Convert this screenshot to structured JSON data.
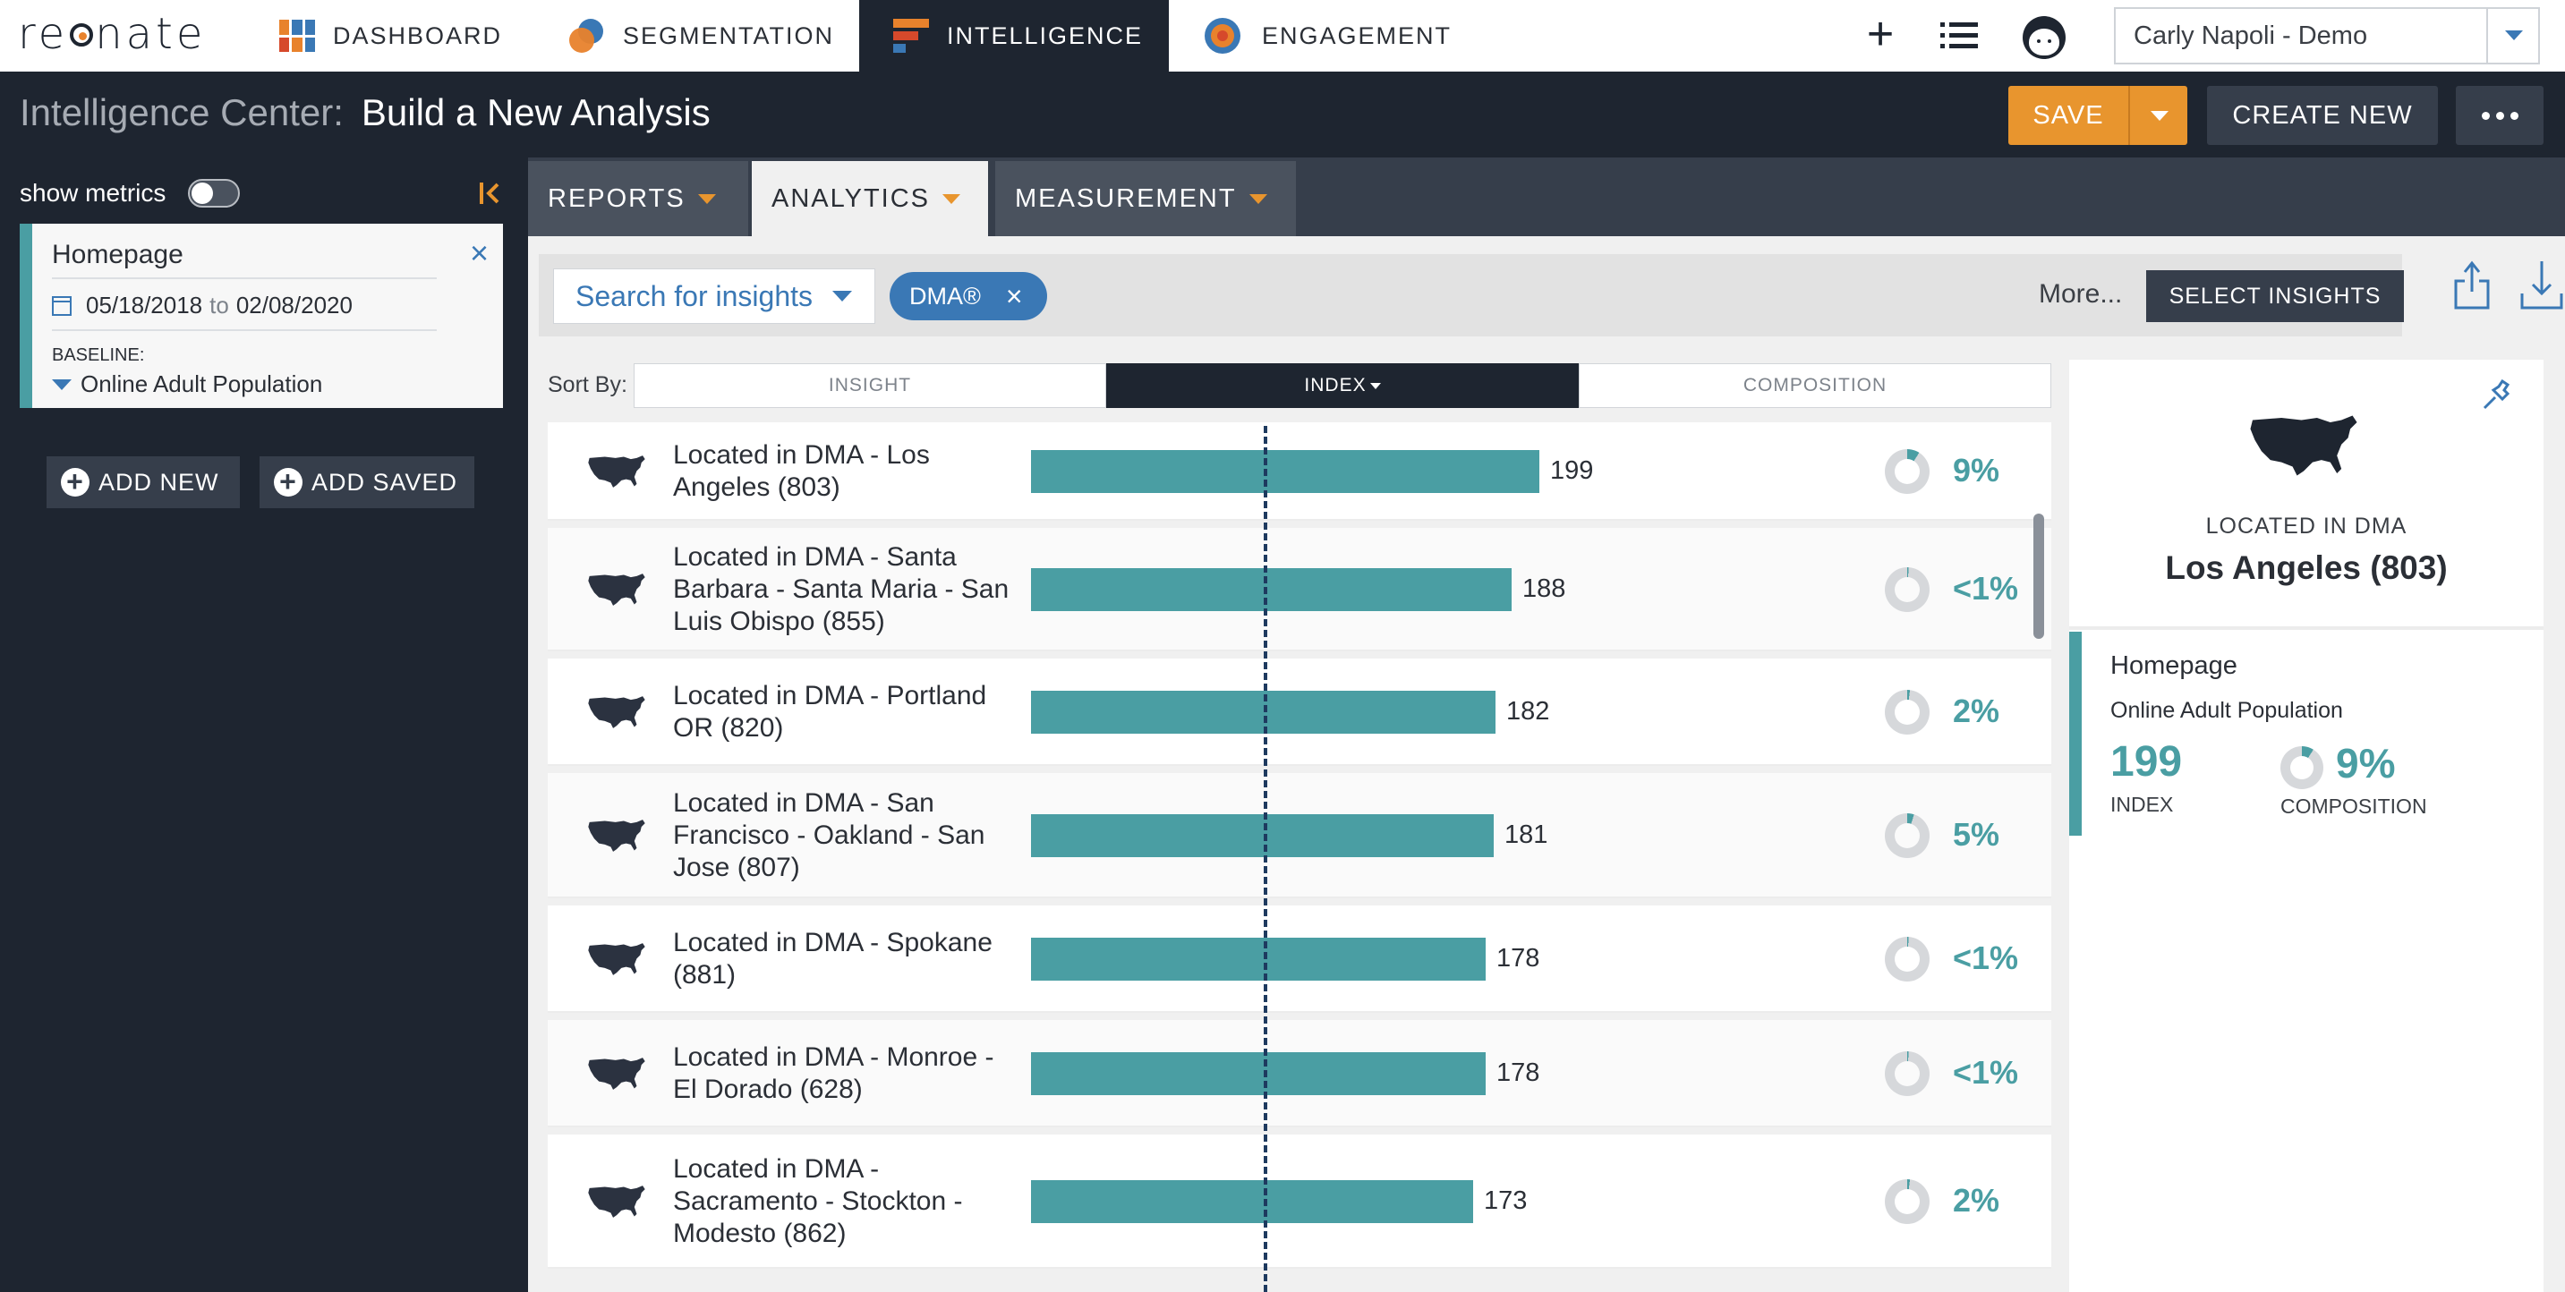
{
  "brand": {
    "logo_text_pre": "re",
    "logo_text_post": "nate"
  },
  "nav": {
    "tabs": [
      {
        "label": "DASHBOARD"
      },
      {
        "label": "SEGMENTATION"
      },
      {
        "label": "INTELLIGENCE",
        "active": true
      },
      {
        "label": "ENGAGEMENT"
      }
    ],
    "plus": "+",
    "user": "Carly Napoli - Demo"
  },
  "header": {
    "title_prefix": "Intelligence Center:",
    "title": "Build a New Analysis",
    "save_label": "SAVE",
    "create_label": "CREATE NEW"
  },
  "sidebar": {
    "show_metrics": "show metrics",
    "segment": {
      "name": "Homepage",
      "date_from": "05/18/2018",
      "date_to_word": "to",
      "date_to": "02/08/2020",
      "baseline_label": "BASELINE:",
      "baseline": "Online Adult Population"
    },
    "add_new": "ADD NEW",
    "add_saved": "ADD SAVED"
  },
  "tabs": {
    "reports": "REPORTS",
    "analytics": "ANALYTICS",
    "measurement": "MEASUREMENT"
  },
  "filter": {
    "search_placeholder": "Search for insights",
    "chip": "DMA®",
    "more": "More...",
    "select_insights": "SELECT INSIGHTS"
  },
  "sort": {
    "label": "Sort By:",
    "insight": "INSIGHT",
    "index": "INDEX",
    "composition": "COMPOSITION"
  },
  "insights": [
    {
      "label": "Located in DMA - Los Angeles (803)",
      "index": 199,
      "composition": "9%",
      "comp_value": 9
    },
    {
      "label": "Located in DMA - Santa Barbara - Santa Maria - San Luis Obispo (855)",
      "index": 188,
      "composition": "<1%",
      "comp_value": 0.5
    },
    {
      "label": "Located in DMA - Portland OR (820)",
      "index": 182,
      "composition": "2%",
      "comp_value": 2
    },
    {
      "label": "Located in DMA - San Francisco - Oakland - San Jose (807)",
      "index": 181,
      "composition": "5%",
      "comp_value": 5
    },
    {
      "label": "Located in DMA - Spokane (881)",
      "index": 178,
      "composition": "<1%",
      "comp_value": 0.5
    },
    {
      "label": "Located in DMA - Monroe - El Dorado (628)",
      "index": 178,
      "composition": "<1%",
      "comp_value": 0.5
    },
    {
      "label": "Located in DMA - Sacramento - Stockton - Modesto (862)",
      "index": 173,
      "composition": "2%",
      "comp_value": 2
    }
  ],
  "detail": {
    "category": "LOCATED IN DMA",
    "title": "Los Angeles (803)",
    "segment": "Homepage",
    "baseline": "Online Adult Population",
    "index": "199",
    "index_label": "INDEX",
    "composition": "9%",
    "comp_value": 9,
    "composition_label": "COMPOSITION"
  },
  "colors": {
    "accent": "#4a9ea3",
    "brand_blue": "#3a78b5",
    "orange": "#e8952e",
    "dark": "#1e2530"
  }
}
